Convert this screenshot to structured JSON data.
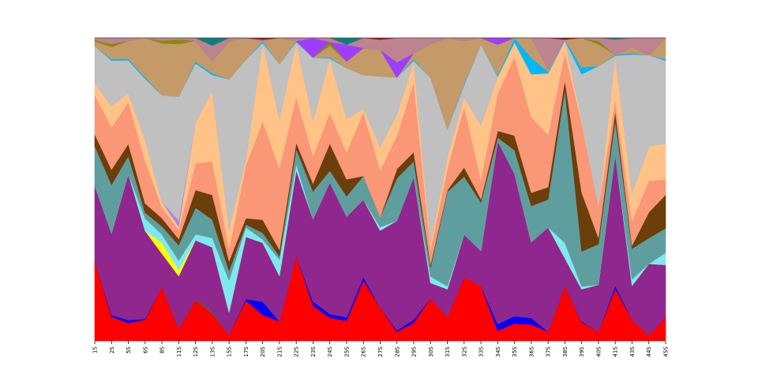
{
  "chart_data": {
    "type": "area",
    "stacked": "percent",
    "title": "",
    "xlabel": "",
    "ylabel": "",
    "ylim": [
      0,
      100
    ],
    "grid": false,
    "legend": "none",
    "categories": [
      "1S",
      "2S",
      "5S",
      "6S",
      "8S",
      "11S",
      "12S",
      "13S",
      "15S",
      "17S",
      "20S",
      "21S",
      "22S",
      "23S",
      "24S",
      "25S",
      "26S",
      "27S",
      "28S",
      "29S",
      "30S",
      "31S",
      "32S",
      "33S",
      "34S",
      "35S",
      "36S",
      "37S",
      "38S",
      "39S",
      "40S",
      "41S",
      "43S",
      "44S",
      "45S"
    ],
    "series": [
      {
        "color": "#ff0000",
        "values": [
          35,
          8,
          6,
          7,
          20,
          4,
          14,
          9,
          2,
          13,
          8,
          6,
          28,
          9,
          6,
          6,
          18,
          10,
          3,
          6,
          14,
          8,
          21,
          17,
          3,
          6,
          5,
          3,
          18,
          7,
          3,
          17,
          7,
          2,
          8
        ]
      },
      {
        "color": "#0000ff",
        "values": [
          0,
          0.6,
          1,
          0.3,
          0,
          0,
          0,
          0,
          0,
          0.5,
          4,
          0,
          0,
          1,
          1,
          1,
          1,
          0,
          0.5,
          1,
          0,
          0,
          0,
          0,
          2,
          2.5,
          2,
          0,
          0,
          0.3,
          0,
          1,
          0,
          0,
          0
        ]
      },
      {
        "color": "#228b22",
        "values": [
          0,
          0,
          0,
          0,
          0,
          0,
          0.2,
          0.5,
          0,
          0,
          0,
          0,
          0,
          0,
          0,
          0,
          0,
          0,
          0,
          0,
          0,
          0,
          0,
          0,
          0,
          0,
          0,
          0,
          0,
          0,
          0,
          0,
          0,
          0,
          0
        ]
      },
      {
        "color": "#8f278f",
        "values": [
          32,
          27,
          49,
          29,
          12,
          17,
          20,
          21,
          7,
          20,
          18,
          14,
          28,
          21,
          34,
          30,
          23,
          23,
          36,
          47,
          5,
          9,
          14,
          11,
          54,
          49,
          23,
          34,
          9,
          12,
          15,
          43,
          11,
          25,
          17
        ]
      },
      {
        "color": "#ffff00",
        "values": [
          0,
          0,
          0,
          0,
          4,
          2,
          0,
          0,
          0,
          0,
          0,
          0,
          0,
          0,
          0,
          0,
          0,
          0,
          0,
          0,
          0,
          0,
          0,
          0,
          0,
          0,
          0,
          0,
          0,
          0,
          0,
          0,
          0,
          0,
          0
        ]
      },
      {
        "color": "#7fe9f1",
        "values": [
          0,
          0,
          0,
          4,
          3,
          3,
          2,
          3,
          10,
          3,
          1,
          5,
          2,
          0,
          0,
          0,
          0,
          1,
          0,
          0,
          2,
          1,
          0,
          0,
          0,
          0,
          0,
          0,
          5,
          1,
          0,
          0,
          2,
          0,
          4
        ]
      },
      {
        "color": "#5f9e9e",
        "values": [
          17,
          16,
          6,
          2,
          3,
          5,
          9,
          6,
          3,
          1,
          2,
          1,
          5,
          7,
          3,
          6,
          7,
          3,
          14,
          5,
          3,
          31,
          19,
          15,
          1,
          8,
          11,
          9,
          50,
          13,
          13,
          11,
          10,
          9,
          8
        ]
      },
      {
        "color": "#6b3e0a",
        "values": [
          5,
          5,
          4,
          3,
          3,
          2,
          6,
          8,
          3,
          2,
          4,
          2,
          2,
          2,
          7,
          5,
          0,
          0,
          3,
          3,
          1,
          0.5,
          3,
          1,
          2,
          5,
          4,
          4,
          3,
          22,
          2,
          3,
          1,
          9,
          11
        ]
      },
      {
        "color": "#f99777",
        "values": [
          17,
          14,
          14,
          14,
          4,
          3,
          9,
          11,
          4,
          17,
          30,
          25,
          15,
          7,
          8,
          8,
          19,
          14,
          11,
          23,
          5,
          7,
          20,
          6,
          11,
          27,
          23,
          17,
          9,
          26,
          10,
          4,
          8,
          11,
          5
        ]
      },
      {
        "color": "#ffc387",
        "values": [
          5,
          7,
          3,
          7,
          2,
          1,
          14,
          23,
          6,
          2,
          24,
          15,
          18,
          9,
          14,
          10,
          1,
          7,
          7,
          7,
          2,
          4,
          3,
          17,
          5,
          5,
          13,
          20,
          4,
          1,
          0,
          14,
          9,
          12,
          12
        ]
      },
      {
        "color": "#a789e0",
        "values": [
          0,
          0,
          0,
          0,
          0,
          2,
          0,
          0,
          0,
          0,
          0,
          0,
          0,
          0,
          0,
          0,
          0,
          0,
          0,
          0,
          0,
          0,
          0,
          0,
          0,
          0,
          0,
          0,
          0,
          0,
          0,
          0,
          0,
          0,
          0
        ]
      },
      {
        "color": "#c0c0c0",
        "values": [
          16,
          15,
          11,
          20,
          39,
          40,
          20,
          5,
          47,
          32,
          0,
          17,
          0,
          16,
          0,
          15,
          10,
          21,
          12,
          0,
          54,
          9,
          4,
          25,
          0,
          0,
          0,
          0,
          0,
          17,
          45,
          0,
          45,
          32,
          27
        ]
      },
      {
        "color": "#02b7f8",
        "values": [
          0,
          0.5,
          0.5,
          0.5,
          0,
          0,
          0.6,
          0.6,
          0,
          0,
          0.5,
          0,
          0.3,
          0,
          0.3,
          0,
          0,
          0,
          0,
          0.5,
          0,
          0,
          0.5,
          0,
          0.4,
          1.5,
          5,
          0.5,
          0.3,
          2.5,
          0,
          0.3,
          0.4,
          0,
          0.5
        ]
      },
      {
        "color": "#c49a69",
        "values": [
          2,
          4,
          6,
          13,
          19,
          17,
          7,
          4,
          12,
          7,
          0,
          8,
          0,
          0,
          3,
          2,
          8,
          8,
          0,
          2,
          11,
          30,
          14,
          2,
          9,
          0,
          6,
          1,
          0,
          11,
          7,
          0,
          2,
          0,
          7
        ]
      },
      {
        "color": "#8b8b00",
        "values": [
          0.5,
          1,
          0,
          0,
          1,
          1.5,
          0,
          0,
          0,
          0,
          0,
          0,
          0,
          0,
          1,
          0,
          0,
          0,
          0,
          0,
          0,
          0,
          0,
          0,
          0,
          0,
          0,
          0,
          0,
          0,
          1,
          0,
          0,
          0,
          0
        ]
      },
      {
        "color": "#9f3dff",
        "values": [
          0,
          0,
          0,
          0,
          0,
          0,
          0,
          0,
          0,
          0,
          0,
          0,
          0,
          5,
          0,
          5,
          0,
          0,
          5,
          0,
          0,
          0,
          0,
          0,
          2,
          0,
          0,
          0,
          0,
          0,
          0,
          0,
          0,
          0,
          0
        ]
      },
      {
        "color": "#bd8390",
        "values": [
          1,
          2,
          1,
          0,
          1,
          0.5,
          1,
          5,
          1,
          0,
          0.5,
          0,
          1,
          0,
          1,
          0,
          3,
          3,
          8,
          5,
          2,
          0,
          1,
          0,
          0,
          0,
          0,
          10,
          0,
          0,
          1,
          5,
          3,
          6,
          0
        ]
      },
      {
        "color": "#0d7f7f",
        "values": [
          0,
          0,
          0,
          0,
          0,
          0,
          0,
          2.5,
          0,
          0,
          0,
          0,
          0,
          0,
          0,
          2,
          0,
          0,
          0,
          0,
          0,
          0,
          0,
          0,
          0,
          0,
          0,
          0,
          0,
          0,
          0,
          0.5,
          0,
          0,
          0
        ]
      },
      {
        "color": "#8b1a1a",
        "values": [
          0,
          0,
          0,
          0,
          0,
          0,
          0,
          0,
          0,
          0,
          0.5,
          0,
          0,
          0,
          0,
          0,
          0,
          0.5,
          0,
          0,
          0,
          0,
          0,
          0,
          0,
          0,
          0,
          0,
          0.5,
          0,
          0,
          0,
          0,
          0,
          0
        ]
      }
    ]
  }
}
